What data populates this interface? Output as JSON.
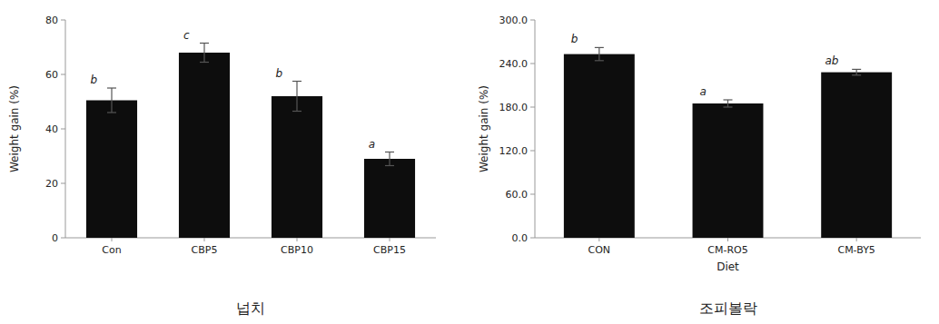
{
  "chart_data": [
    {
      "type": "bar",
      "subtitle": "넙치",
      "categories": [
        "Con",
        "CBP5",
        "CBP10",
        "CBP15"
      ],
      "values": [
        50.5,
        68.0,
        52.0,
        29.0
      ],
      "errors": [
        4.5,
        3.5,
        5.5,
        2.5
      ],
      "annotations": [
        "b",
        "c",
        "b",
        "a"
      ],
      "ylabel": "Weight gain (%)",
      "ylim": [
        0,
        80
      ],
      "yticks": [
        0,
        20,
        40,
        60,
        80
      ],
      "color": "#0d0d0d",
      "grid": false
    },
    {
      "type": "bar",
      "subtitle": "조피볼락",
      "categories": [
        "CON",
        "CM-RO5",
        "CM-BY5"
      ],
      "values": [
        253.0,
        185.0,
        228.0
      ],
      "errors": [
        9.0,
        5.0,
        4.0
      ],
      "annotations": [
        "b",
        "a",
        "ab"
      ],
      "ylabel": "Weight gain (%)",
      "xlabel": "Diet",
      "ylim": [
        0,
        300
      ],
      "yticks": [
        {
          "value": 0,
          "label": "0.0"
        },
        {
          "value": 60,
          "label": "60.0"
        },
        {
          "value": 120,
          "label": "120.0"
        },
        {
          "value": 180,
          "label": "180.0"
        },
        {
          "value": 240,
          "label": "240.0"
        },
        {
          "value": 300,
          "label": "300.0"
        }
      ],
      "color": "#0d0d0d",
      "grid": false
    }
  ]
}
